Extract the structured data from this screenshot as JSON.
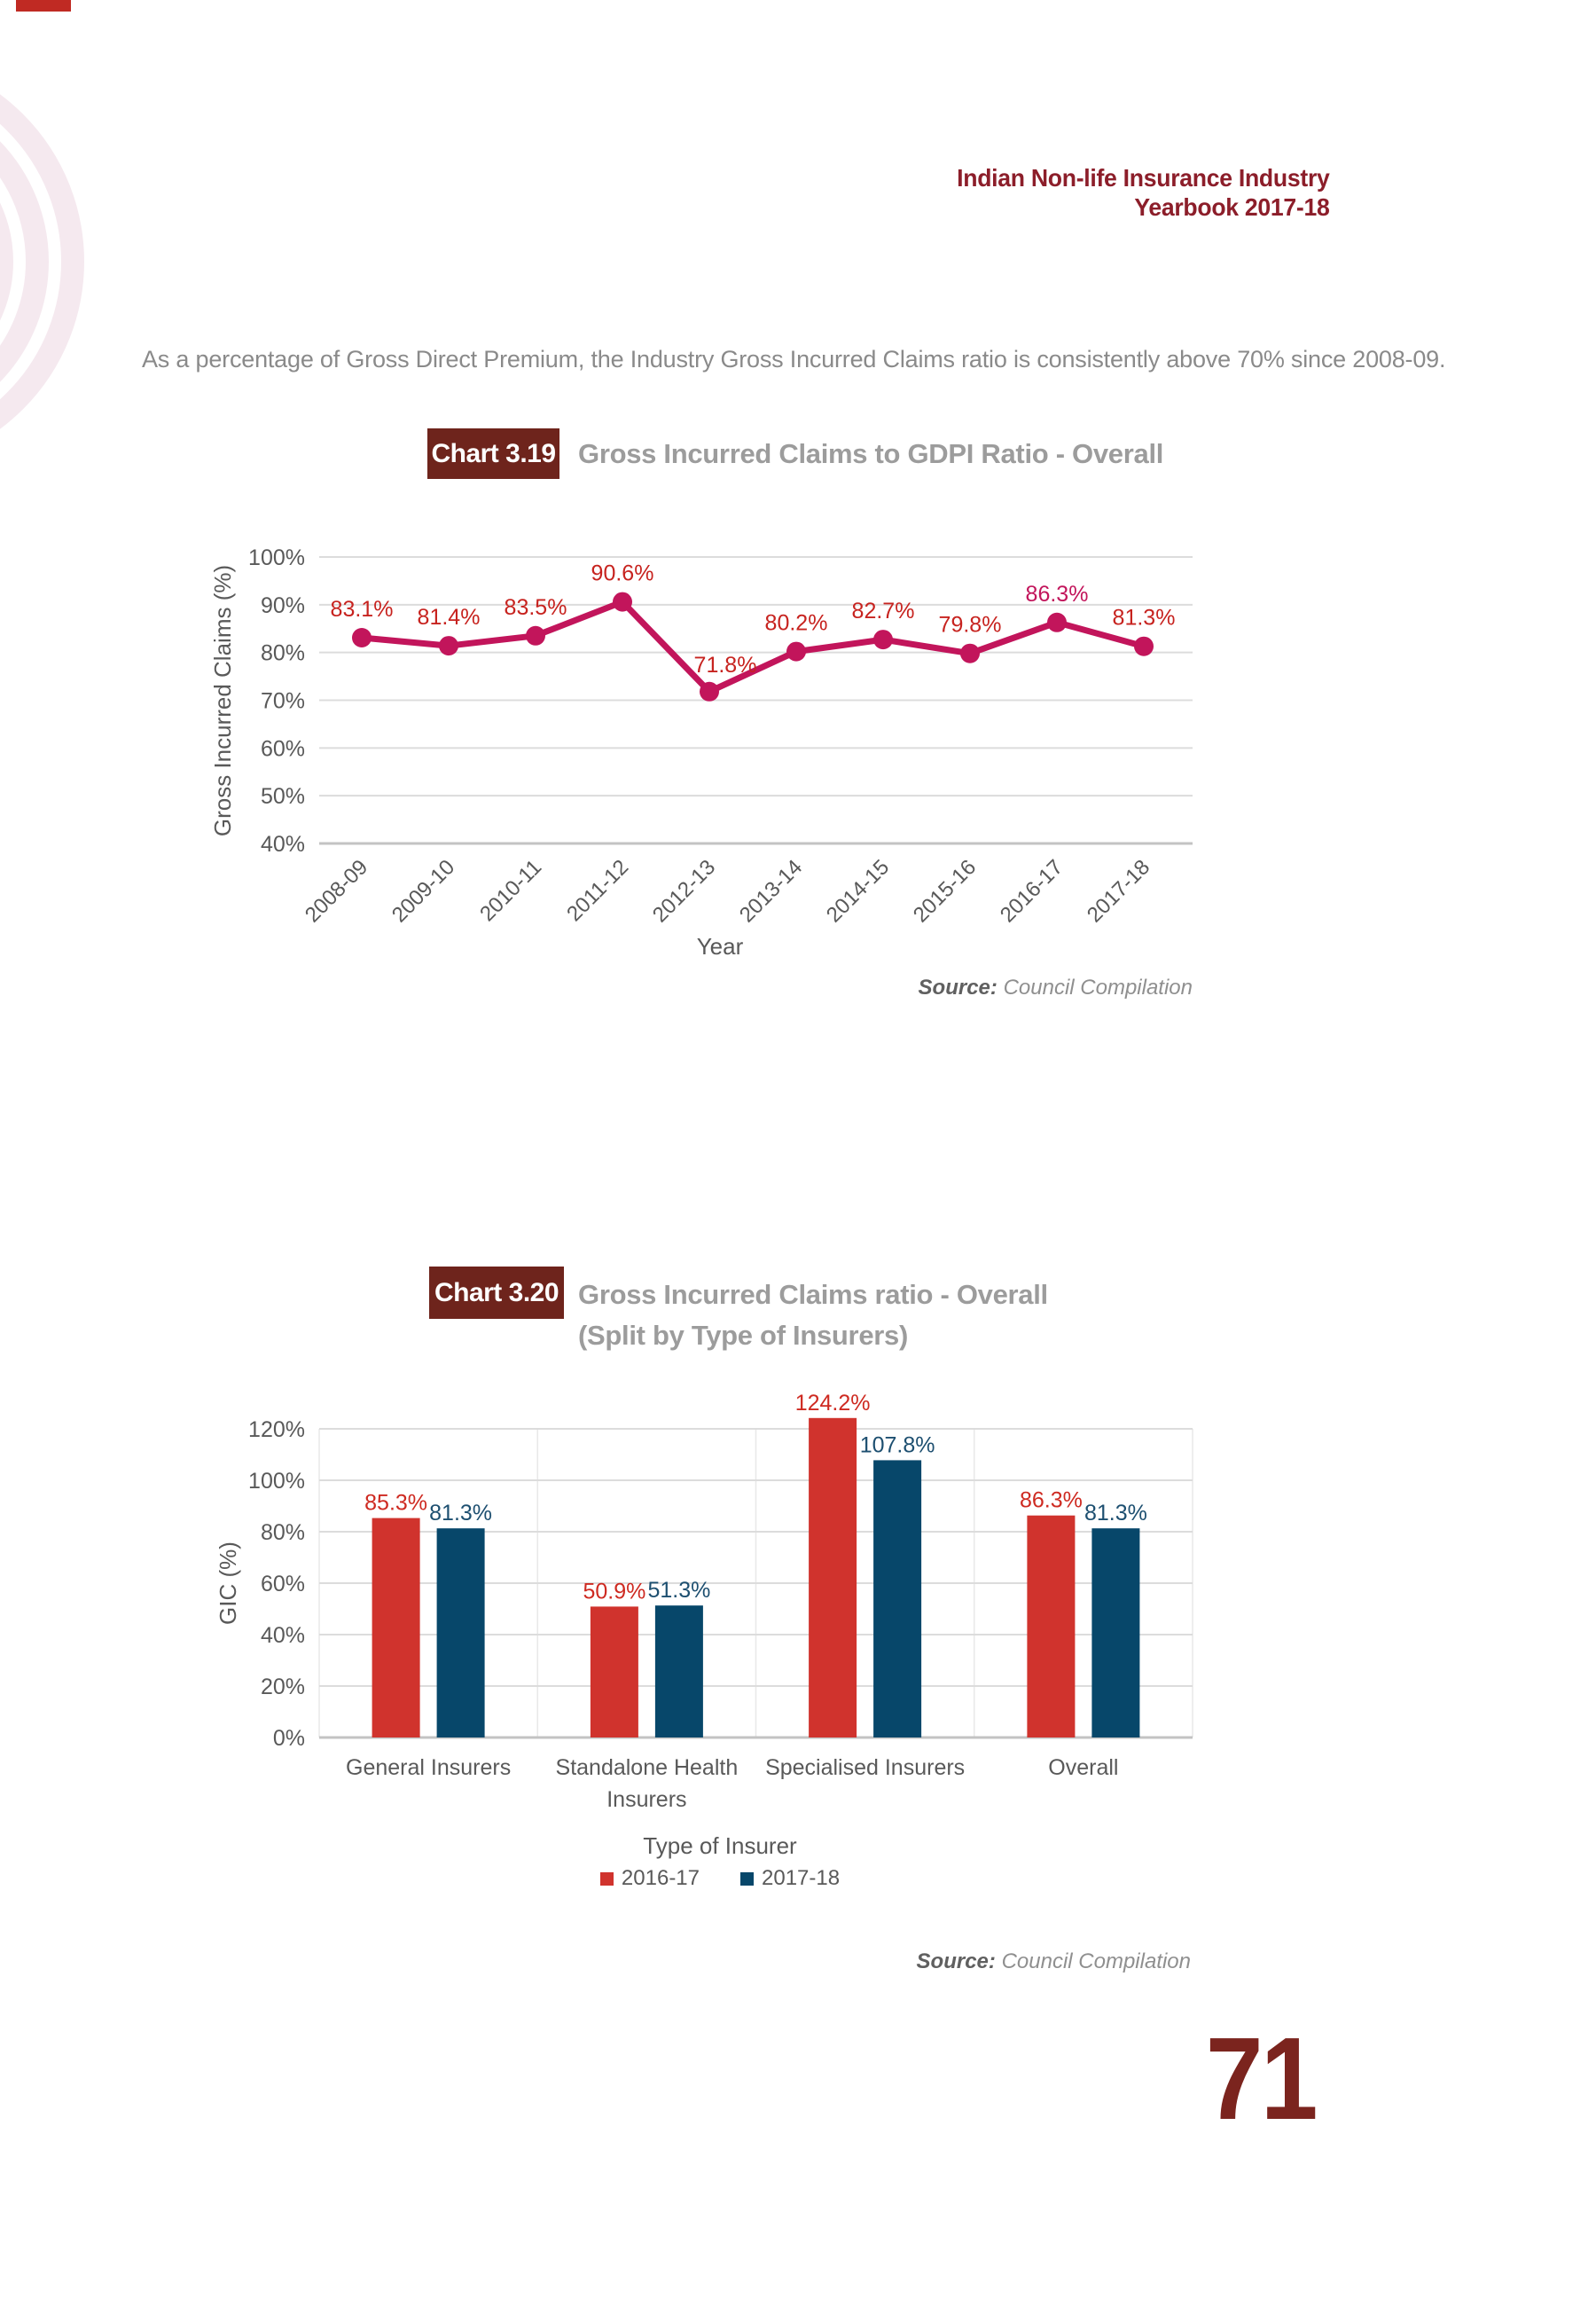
{
  "page": {
    "header_line1": "Indian Non-life Insurance Industry",
    "header_line2": "Yearbook 2017-18",
    "intro": "As a percentage of Gross Direct Premium, the Industry Gross Incurred Claims ratio is consistently above 70% since 2008-09.",
    "page_number": "71",
    "colors": {
      "header_maroon": "#8C1E2A",
      "badge_maroon": "#6E241C",
      "page_number_maroon": "#7B241E",
      "title_gray": "#9C9C9C",
      "accent_red": "#C02A23"
    }
  },
  "chart_data": [
    {
      "id": "chart_3_19",
      "type": "line",
      "badge": "Chart 3.19",
      "title": "Gross Incurred Claims to GDPI Ratio - Overall",
      "categories": [
        "2008-09",
        "2009-10",
        "2010-11",
        "2011-12",
        "2012-13",
        "2013-14",
        "2014-15",
        "2015-16",
        "2016-17",
        "2017-18"
      ],
      "values": [
        83.1,
        81.4,
        83.5,
        90.6,
        71.8,
        80.2,
        82.7,
        79.8,
        86.3,
        81.3
      ],
      "labels": [
        "83.1%",
        "81.4%",
        "83.5%",
        "90.6%",
        "71.8%",
        "80.2%",
        "82.7%",
        "79.8%",
        "86.3%",
        "81.3%"
      ],
      "label_colors": [
        "#C7231F",
        "#C7231F",
        "#C7231F",
        "#C7231F",
        "#C7231F",
        "#C7231F",
        "#C7231F",
        "#C7231F",
        "#C2155B",
        "#C7231F"
      ],
      "series_color": "#C2155B",
      "xlabel": "Year",
      "ylabel": "Gross Incurred Claims (%)",
      "ylim": [
        40,
        100
      ],
      "ytick_step": 10,
      "ytick_labels": [
        "40%",
        "50%",
        "60%",
        "70%",
        "80%",
        "90%",
        "100%"
      ],
      "grid": true,
      "legend_position": "none",
      "source_label": "Source:",
      "source_text": "Council Compilation"
    },
    {
      "id": "chart_3_20",
      "type": "bar",
      "badge": "Chart 3.20",
      "title": "Gross Incurred Claims ratio - Overall (Split by Type of Insurers)",
      "title_line1": "Gross Incurred Claims ratio - Overall",
      "title_line2": "(Split by Type of Insurers)",
      "categories": [
        "General Insurers",
        "Standalone Health\nInsurers",
        "Specialised Insurers",
        "Overall"
      ],
      "series": [
        {
          "name": "2016-17",
          "color": "#D0332D",
          "label_color": "#CE2A21",
          "values": [
            85.3,
            50.9,
            124.2,
            86.3
          ],
          "labels": [
            "85.3%",
            "50.9%",
            "124.2%",
            "86.3%"
          ]
        },
        {
          "name": "2017-18",
          "color": "#07476A",
          "label_color": "#1D4F70",
          "values": [
            81.3,
            51.3,
            107.8,
            81.3
          ],
          "labels": [
            "81.3%",
            "51.3%",
            "107.8%",
            "81.3%"
          ]
        }
      ],
      "xlabel": "Type of Insurer",
      "ylabel": "GIC (%)",
      "ylim": [
        0,
        120
      ],
      "ytick_step": 20,
      "ytick_labels": [
        "0%",
        "20%",
        "40%",
        "60%",
        "80%",
        "100%",
        "120%"
      ],
      "grid": true,
      "legend_position": "bottom",
      "source_label": "Source:",
      "source_text": "Council Compilation"
    }
  ]
}
